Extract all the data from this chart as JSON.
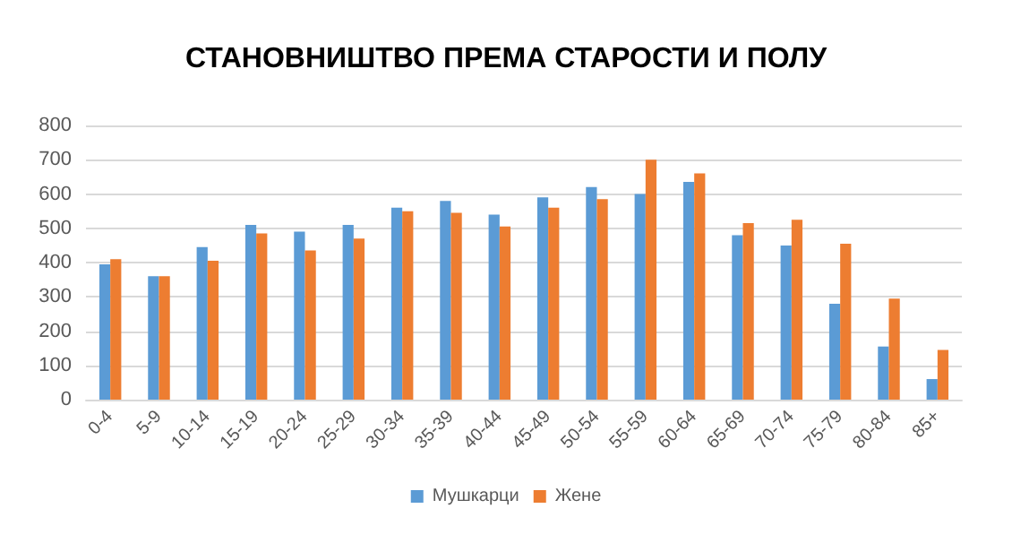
{
  "chart_data": {
    "type": "bar",
    "title": "СТАНОВНИШТВО ПРЕМА СТАРОСТИ И ПОЛУ",
    "categories": [
      "0-4",
      "5-9",
      "10-14",
      "15-19",
      "20-24",
      "25-29",
      "30-34",
      "35-39",
      "40-44",
      "45-49",
      "50-54",
      "55-59",
      "60-64",
      "65-69",
      "70-74",
      "75-79",
      "80-84",
      "85+"
    ],
    "series": [
      {
        "name": "Мушкарци",
        "color": "#5b9bd5",
        "values": [
          395,
          360,
          445,
          510,
          490,
          510,
          560,
          580,
          540,
          590,
          620,
          600,
          635,
          480,
          450,
          280,
          155,
          60
        ]
      },
      {
        "name": "Жене",
        "color": "#ed7d31",
        "values": [
          410,
          360,
          405,
          485,
          435,
          470,
          550,
          545,
          505,
          560,
          585,
          700,
          660,
          515,
          525,
          455,
          295,
          145
        ]
      }
    ],
    "ylim": [
      0,
      800
    ],
    "yticks": [
      0,
      100,
      200,
      300,
      400,
      500,
      600,
      700,
      800
    ],
    "grid": "y",
    "legend": "bottom"
  }
}
